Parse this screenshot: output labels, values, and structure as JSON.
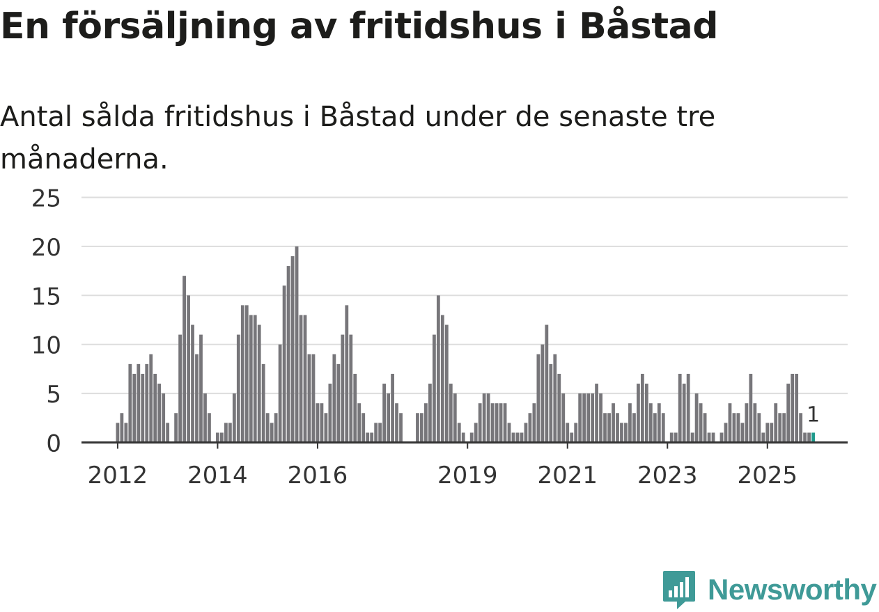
{
  "header": {
    "title": "En försäljning av fritidshus i Båstad",
    "subtitle": "Antal sålda fritidshus i Båstad under de senaste tre månaderna."
  },
  "chart_data": {
    "type": "bar",
    "title": "En försäljning av fritidshus i Båstad",
    "subtitle": "Antal sålda fritidshus i Båstad under de senaste tre månaderna.",
    "xlabel": "",
    "ylabel": "",
    "ylim": [
      0,
      25
    ],
    "yticks": [
      "0",
      "5",
      "10",
      "15",
      "20",
      "25"
    ],
    "xticks": [
      {
        "label": "2012",
        "index": 0
      },
      {
        "label": "2014",
        "index": 24
      },
      {
        "label": "2016",
        "index": 48
      },
      {
        "label": "2019",
        "index": 84
      },
      {
        "label": "2021",
        "index": 108
      },
      {
        "label": "2023",
        "index": 132
      },
      {
        "label": "2025",
        "index": 156
      }
    ],
    "grid": true,
    "start": "2012-01",
    "frequency": "monthly",
    "values": [
      2,
      3,
      2,
      8,
      7,
      8,
      7,
      8,
      9,
      7,
      6,
      5,
      2,
      0,
      3,
      11,
      17,
      15,
      12,
      9,
      11,
      5,
      3,
      0,
      1,
      1,
      2,
      2,
      5,
      11,
      14,
      14,
      13,
      13,
      12,
      8,
      3,
      2,
      3,
      10,
      16,
      18,
      19,
      20,
      13,
      13,
      9,
      9,
      4,
      4,
      3,
      6,
      9,
      8,
      11,
      14,
      11,
      7,
      4,
      3,
      1,
      1,
      2,
      2,
      6,
      5,
      7,
      4,
      3,
      0,
      0,
      0,
      3,
      3,
      4,
      6,
      11,
      15,
      13,
      12,
      6,
      5,
      2,
      1,
      0,
      1,
      2,
      4,
      5,
      5,
      4,
      4,
      4,
      4,
      2,
      1,
      1,
      1,
      2,
      3,
      4,
      9,
      10,
      12,
      8,
      9,
      7,
      5,
      2,
      1,
      2,
      5,
      5,
      5,
      5,
      6,
      5,
      3,
      3,
      4,
      3,
      2,
      2,
      4,
      3,
      6,
      7,
      6,
      4,
      3,
      4,
      3,
      0,
      1,
      1,
      7,
      6,
      7,
      1,
      5,
      4,
      3,
      1,
      1,
      0,
      1,
      2,
      4,
      3,
      3,
      2,
      4,
      7,
      4,
      3,
      1,
      2,
      2,
      4,
      3,
      3,
      6,
      7,
      7,
      3,
      1,
      1,
      1
    ],
    "highlight": {
      "index": 167,
      "value": 1,
      "label": "1",
      "color": "#1d9a8c"
    },
    "bar_color": "#77767a"
  },
  "branding": {
    "name": "Newsworthy",
    "color": "#3f9a97"
  }
}
